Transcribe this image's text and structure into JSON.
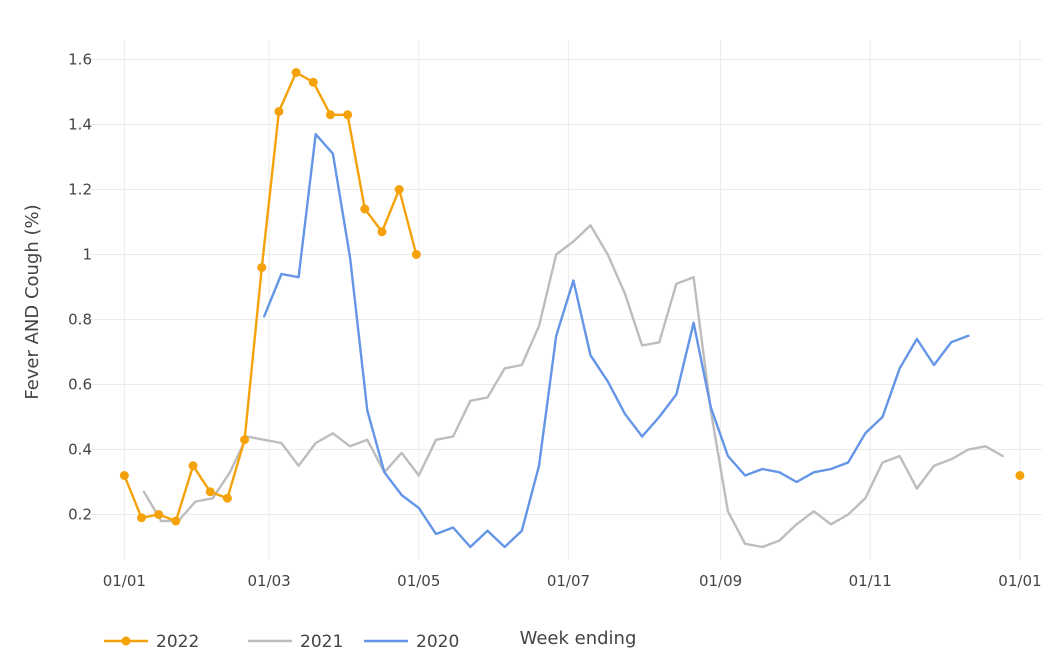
{
  "chart_data": {
    "type": "line",
    "xlabel": "Week ending",
    "ylabel": "Fever AND Cough (%)",
    "ylim": [
      0.06,
      1.66
    ],
    "xlim": [
      -14,
      374
    ],
    "x_unit": "day of year",
    "yticks": [
      {
        "value": 0.2,
        "label": "0.2"
      },
      {
        "value": 0.4,
        "label": "0.4"
      },
      {
        "value": 0.6,
        "label": "0.6"
      },
      {
        "value": 0.8,
        "label": "0.8"
      },
      {
        "value": 1.0,
        "label": "1"
      },
      {
        "value": 1.2,
        "label": "1.2"
      },
      {
        "value": 1.4,
        "label": "1.4"
      },
      {
        "value": 1.6,
        "label": "1.6"
      }
    ],
    "xticks": [
      {
        "value": 0,
        "label": "01/01"
      },
      {
        "value": 59,
        "label": "01/03"
      },
      {
        "value": 120,
        "label": "01/05"
      },
      {
        "value": 181,
        "label": "01/07"
      },
      {
        "value": 243,
        "label": "01/09"
      },
      {
        "value": 304,
        "label": "01/11"
      },
      {
        "value": 365,
        "label": "01/01"
      }
    ],
    "grid": true,
    "legend_position": "bottom-left",
    "series": [
      {
        "name": "2022",
        "color": "#f5a20a",
        "markers": true,
        "x": [
          0,
          7,
          14,
          21,
          28,
          35,
          42,
          49,
          56,
          63,
          70,
          77,
          84,
          91,
          98,
          105,
          112,
          119
        ],
        "y": [
          0.32,
          0.19,
          0.2,
          0.18,
          0.35,
          0.27,
          0.25,
          0.43,
          0.96,
          1.44,
          1.56,
          1.53,
          1.43,
          1.43,
          1.14,
          1.07,
          1.2,
          1.0
        ],
        "extra_points": [
          {
            "x": 365,
            "y": 0.32
          }
        ]
      },
      {
        "name": "2021",
        "color": "#bdbdbd",
        "markers": false,
        "x": [
          8,
          15,
          22,
          29,
          36,
          43,
          50,
          57,
          64,
          71,
          78,
          85,
          92,
          99,
          106,
          113,
          120,
          127,
          134,
          141,
          148,
          155,
          162,
          169,
          176,
          183,
          190,
          197,
          204,
          211,
          218,
          225,
          232,
          239,
          246,
          253,
          260,
          267,
          274,
          281,
          288,
          295,
          302,
          309,
          316,
          323,
          330,
          337,
          344,
          351,
          358
        ],
        "y": [
          0.27,
          0.18,
          0.18,
          0.24,
          0.25,
          0.33,
          0.44,
          0.43,
          0.42,
          0.35,
          0.42,
          0.45,
          0.41,
          0.43,
          0.33,
          0.39,
          0.32,
          0.43,
          0.44,
          0.55,
          0.56,
          0.65,
          0.66,
          0.78,
          1.0,
          1.04,
          1.09,
          1.0,
          0.88,
          0.72,
          0.73,
          0.91,
          0.93,
          0.52,
          0.21,
          0.11,
          0.1,
          0.12,
          0.17,
          0.21,
          0.17,
          0.2,
          0.25,
          0.36,
          0.38,
          0.28,
          0.35,
          0.37,
          0.4,
          0.41,
          0.38
        ]
      },
      {
        "name": "2020",
        "color": "#6495e6",
        "markers": false,
        "x": [
          57,
          64,
          71,
          78,
          85,
          92,
          99,
          106,
          113,
          120,
          127,
          134,
          141,
          148,
          155,
          162,
          169,
          176,
          183,
          190,
          197,
          204,
          211,
          218,
          225,
          232,
          239,
          246,
          253,
          260,
          267,
          274,
          281,
          288,
          295,
          302,
          309,
          316,
          323,
          330,
          337,
          344
        ],
        "y": [
          0.81,
          0.94,
          0.93,
          1.37,
          1.31,
          0.99,
          0.52,
          0.33,
          0.26,
          0.22,
          0.14,
          0.16,
          0.1,
          0.15,
          0.1,
          0.15,
          0.35,
          0.75,
          0.92,
          0.69,
          0.61,
          0.51,
          0.44,
          0.5,
          0.57,
          0.79,
          0.53,
          0.38,
          0.32,
          0.34,
          0.33,
          0.3,
          0.33,
          0.34,
          0.36,
          0.45,
          0.5,
          0.65,
          0.74,
          0.66,
          0.73,
          0.75
        ]
      }
    ]
  }
}
